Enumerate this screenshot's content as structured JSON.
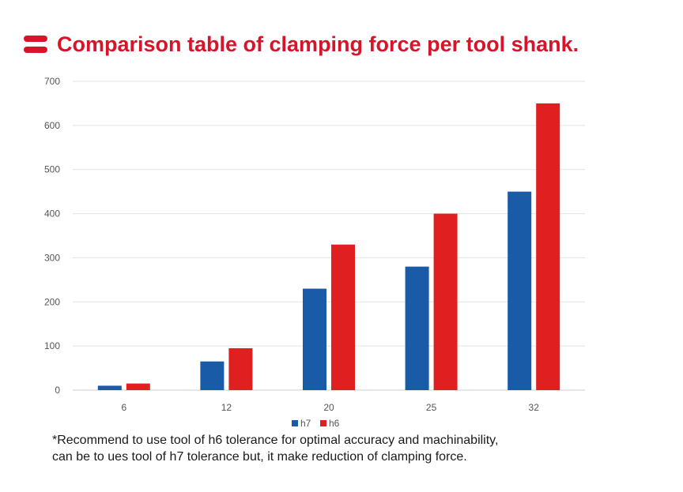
{
  "page": {
    "title": "Comparison table of clamping force per tool shank.",
    "title_color": "#d7142a",
    "title_icon": "double-bar-icon",
    "footnote": [
      "*Recommend to use tool of h6 tolerance for optimal accuracy and machinability,",
      "can be to ues tool of h7 tolerance but, it make reduction of clamping force."
    ]
  },
  "chart_data": {
    "type": "bar",
    "title": "Comparison table of clamping force per tool shank.",
    "xlabel": "",
    "ylabel": "",
    "categories": [
      "6",
      "12",
      "20",
      "25",
      "32"
    ],
    "series": [
      {
        "name": "h7",
        "color": "#1a5ba8",
        "values": [
          10,
          65,
          230,
          280,
          450
        ]
      },
      {
        "name": "h6",
        "color": "#e02020",
        "values": [
          15,
          95,
          330,
          400,
          650
        ]
      }
    ],
    "ylim": [
      0,
      700
    ],
    "yticks": [
      "0",
      "100",
      "200",
      "300",
      "400",
      "500",
      "600",
      "700"
    ],
    "grid": true,
    "legend_position": "bottom-center"
  }
}
